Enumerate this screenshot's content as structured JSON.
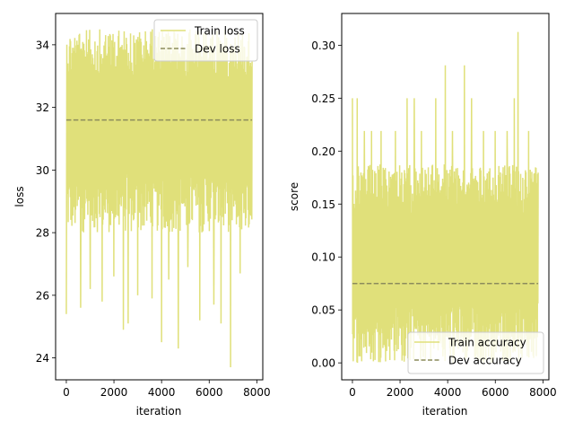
{
  "chart_data": [
    {
      "type": "line",
      "xlabel": "iteration",
      "ylabel": "loss",
      "xlim": [
        -450,
        8250
      ],
      "ylim": [
        23.3,
        35.0
      ],
      "x_ticks": [
        0,
        2000,
        4000,
        6000,
        8000
      ],
      "y_ticks": [
        24,
        26,
        28,
        30,
        32,
        34
      ],
      "legend_position": "top-right",
      "grid": false,
      "series": [
        {
          "name": "Train loss",
          "style": "solid",
          "color": "#e0e07a",
          "x_range": [
            0,
            7800
          ],
          "band_low": 28.0,
          "band_high": 34.5,
          "spikes_down": [
            {
              "x": 0,
              "y": 25.4
            },
            {
              "x": 600,
              "y": 25.6
            },
            {
              "x": 1000,
              "y": 26.2
            },
            {
              "x": 1500,
              "y": 25.8
            },
            {
              "x": 2000,
              "y": 26.6
            },
            {
              "x": 2400,
              "y": 24.9
            },
            {
              "x": 2600,
              "y": 25.1
            },
            {
              "x": 3000,
              "y": 26.0
            },
            {
              "x": 3600,
              "y": 25.9
            },
            {
              "x": 4000,
              "y": 24.5
            },
            {
              "x": 4300,
              "y": 26.5
            },
            {
              "x": 4700,
              "y": 24.3
            },
            {
              "x": 5100,
              "y": 26.9
            },
            {
              "x": 5600,
              "y": 25.2
            },
            {
              "x": 6200,
              "y": 25.7
            },
            {
              "x": 6500,
              "y": 25.1
            },
            {
              "x": 6900,
              "y": 23.7
            },
            {
              "x": 7300,
              "y": 26.7
            }
          ]
        },
        {
          "name": "Dev loss",
          "style": "dashed",
          "color": "#8c8c5c",
          "x": [
            0,
            7800
          ],
          "y": [
            31.6,
            31.6
          ]
        }
      ]
    },
    {
      "type": "line",
      "xlabel": "iteration",
      "ylabel": "score",
      "xlim": [
        -450,
        8250
      ],
      "ylim": [
        -0.016,
        0.33
      ],
      "x_ticks": [
        0,
        2000,
        4000,
        6000,
        8000
      ],
      "y_ticks": [
        "0.00",
        "0.05",
        "0.10",
        "0.15",
        "0.20",
        "0.25",
        "0.30"
      ],
      "legend_position": "bottom-right",
      "grid": false,
      "series": [
        {
          "name": "Train accuracy",
          "style": "solid",
          "color": "#e0e07a",
          "x_range": [
            0,
            7800
          ],
          "band_low": 0.0,
          "band_high": 0.1875,
          "spikes_up": [
            {
              "x": 0,
              "y": 0.25
            },
            {
              "x": 200,
              "y": 0.25
            },
            {
              "x": 500,
              "y": 0.219
            },
            {
              "x": 800,
              "y": 0.219
            },
            {
              "x": 1200,
              "y": 0.219
            },
            {
              "x": 1800,
              "y": 0.219
            },
            {
              "x": 2300,
              "y": 0.25
            },
            {
              "x": 2600,
              "y": 0.25
            },
            {
              "x": 2900,
              "y": 0.219
            },
            {
              "x": 3500,
              "y": 0.25
            },
            {
              "x": 3900,
              "y": 0.281
            },
            {
              "x": 4200,
              "y": 0.219
            },
            {
              "x": 4700,
              "y": 0.281
            },
            {
              "x": 5000,
              "y": 0.25
            },
            {
              "x": 5500,
              "y": 0.219
            },
            {
              "x": 6000,
              "y": 0.219
            },
            {
              "x": 6500,
              "y": 0.219
            },
            {
              "x": 6800,
              "y": 0.25
            },
            {
              "x": 6950,
              "y": 0.3125
            },
            {
              "x": 7400,
              "y": 0.219
            }
          ]
        },
        {
          "name": "Dev accuracy",
          "style": "dashed",
          "color": "#8c8c5c",
          "x": [
            0,
            7800
          ],
          "y": [
            0.075,
            0.075
          ]
        }
      ]
    }
  ]
}
